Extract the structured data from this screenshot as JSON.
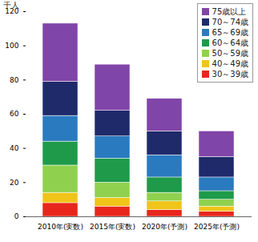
{
  "chart_data": {
    "type": "bar",
    "stacked": true,
    "y_label": "千人",
    "legend": "top-right",
    "categories": [
      "2010年(実数)",
      "2015年(実数)",
      "2020年(予測)",
      "2025年(予測)"
    ],
    "ylim": [
      0,
      120
    ],
    "yticks": [
      0,
      20,
      40,
      60,
      80,
      100,
      120
    ],
    "series": [
      {
        "name": "30～39歳",
        "color": "#e8261c",
        "values": [
          8,
          6,
          4,
          3
        ]
      },
      {
        "name": "40～49歳",
        "color": "#f0c419",
        "values": [
          6,
          5,
          5,
          3
        ]
      },
      {
        "name": "50～59歳",
        "color": "#8fd14f",
        "values": [
          16,
          9,
          5,
          4
        ]
      },
      {
        "name": "60～64歳",
        "color": "#1e9a4a",
        "values": [
          14,
          14,
          9,
          5
        ]
      },
      {
        "name": "65～69歳",
        "color": "#2a7ac0",
        "values": [
          15,
          13,
          13,
          8
        ]
      },
      {
        "name": "70～74歳",
        "color": "#1f2a6b",
        "values": [
          20,
          15,
          14,
          12
        ]
      },
      {
        "name": "75歳以上",
        "color": "#8045a8",
        "values": [
          34,
          27,
          19,
          15
        ]
      }
    ]
  }
}
